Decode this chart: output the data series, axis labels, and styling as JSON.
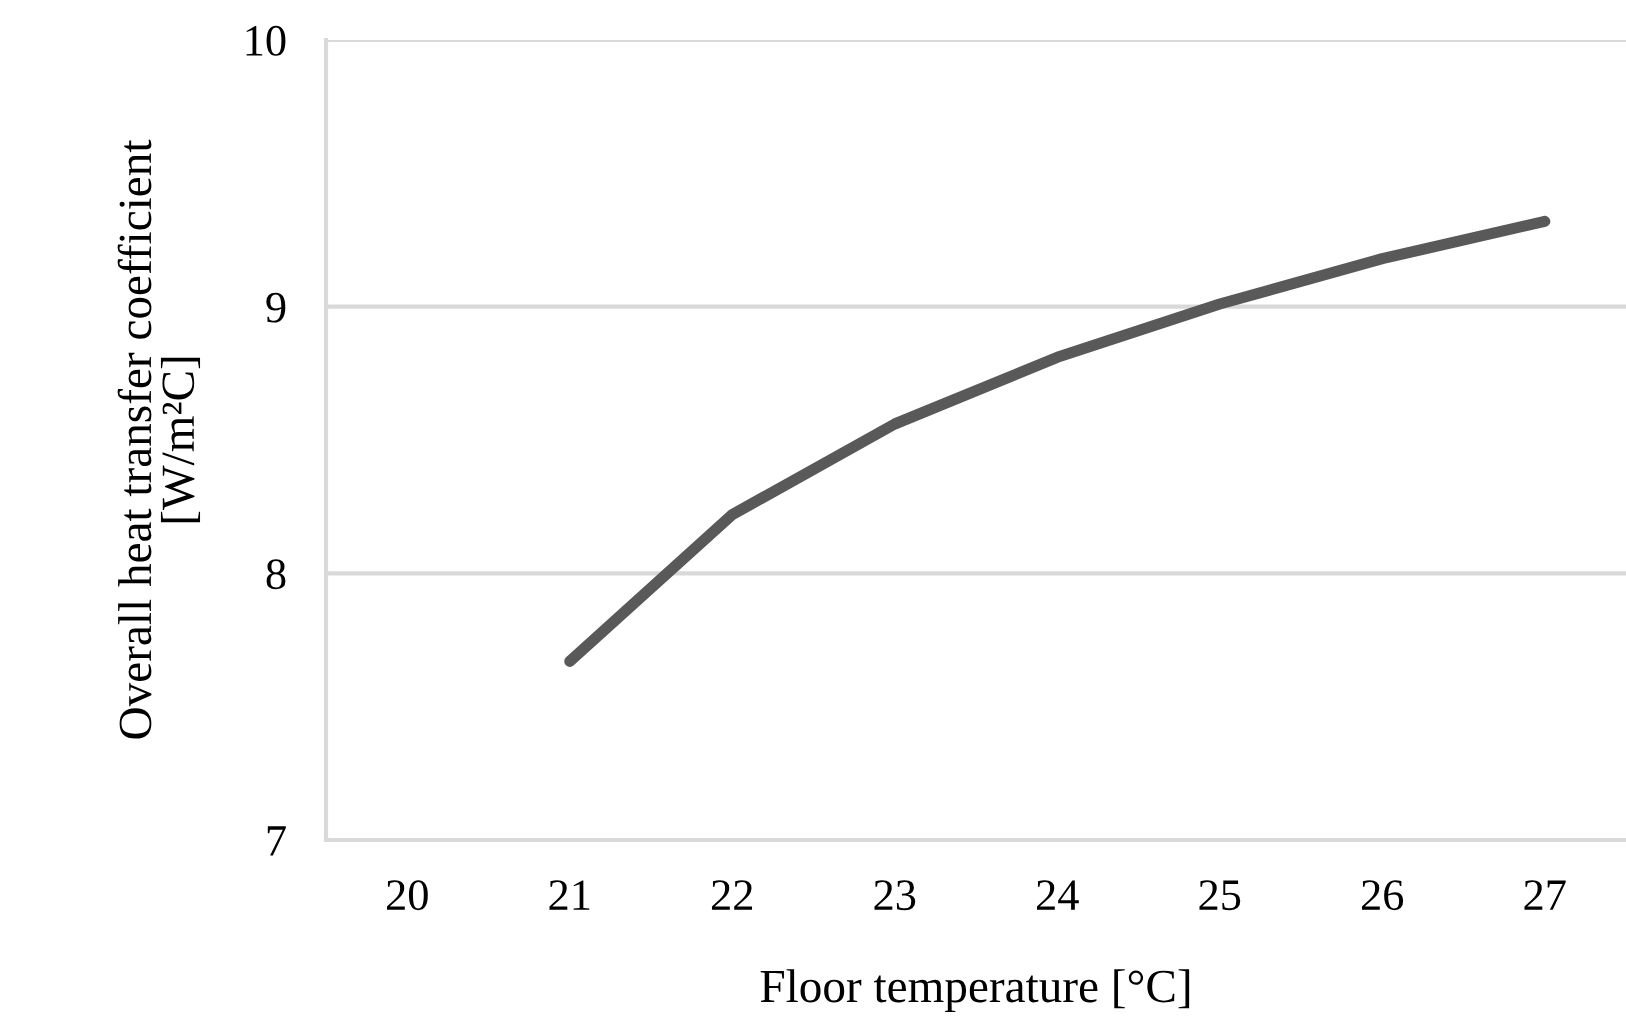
{
  "chart_data": {
    "type": "line",
    "xlabel": "Floor temperature [°C]",
    "ylabel": "Overall heat transfer coefficient\n[W/m²C]",
    "categories": [
      "20",
      "21",
      "22",
      "23",
      "24",
      "25",
      "26",
      "27"
    ],
    "series": [
      {
        "color": "#595959",
        "values": [
          null,
          7.67,
          8.22,
          8.56,
          8.81,
          9.01,
          9.18,
          9.32
        ]
      }
    ],
    "ylim": [
      7,
      10
    ],
    "yticks": [
      7,
      8,
      9,
      10
    ],
    "grid": "y",
    "legend": false,
    "marker": "none",
    "line_style": "solid"
  }
}
